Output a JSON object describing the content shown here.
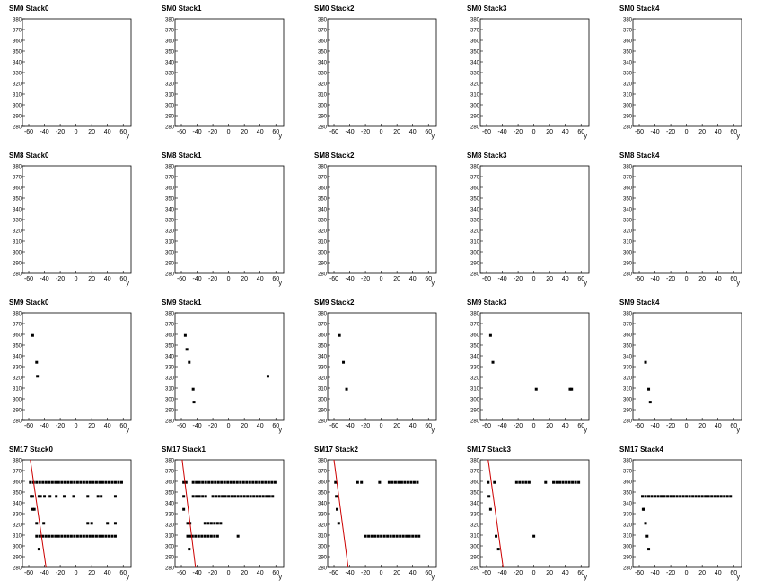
{
  "chart_data": [
    {
      "type": "scatter",
      "title": "SM0 Stack0",
      "xlabel": "y",
      "xlim": [
        -68,
        70
      ],
      "ylim": [
        280,
        380
      ],
      "xticks": [
        -60,
        -40,
        -20,
        0,
        20,
        40,
        60
      ],
      "yticks": [
        280,
        290,
        300,
        310,
        320,
        330,
        340,
        350,
        360,
        370,
        380
      ],
      "color": "#000000",
      "x": [],
      "values": []
    },
    {
      "type": "scatter",
      "title": "SM0 Stack1",
      "xlabel": "y",
      "xlim": [
        -68,
        70
      ],
      "ylim": [
        280,
        380
      ],
      "xticks": [
        -60,
        -40,
        -20,
        0,
        20,
        40,
        60
      ],
      "yticks": [
        280,
        290,
        300,
        310,
        320,
        330,
        340,
        350,
        360,
        370,
        380
      ],
      "color": "#000000",
      "x": [],
      "values": []
    },
    {
      "type": "scatter",
      "title": "SM0 Stack2",
      "xlabel": "y",
      "xlim": [
        -68,
        70
      ],
      "ylim": [
        280,
        380
      ],
      "xticks": [
        -60,
        -40,
        -20,
        0,
        20,
        40,
        60
      ],
      "yticks": [
        280,
        290,
        300,
        310,
        320,
        330,
        340,
        350,
        360,
        370,
        380
      ],
      "color": "#000000",
      "x": [],
      "values": []
    },
    {
      "type": "scatter",
      "title": "SM0 Stack3",
      "xlabel": "y",
      "xlim": [
        -68,
        70
      ],
      "ylim": [
        280,
        380
      ],
      "xticks": [
        -60,
        -40,
        -20,
        0,
        20,
        40,
        60
      ],
      "yticks": [
        280,
        290,
        300,
        310,
        320,
        330,
        340,
        350,
        360,
        370,
        380
      ],
      "color": "#000000",
      "x": [],
      "values": []
    },
    {
      "type": "scatter",
      "title": "SM0 Stack4",
      "xlabel": "y",
      "xlim": [
        -68,
        70
      ],
      "ylim": [
        280,
        380
      ],
      "xticks": [
        -60,
        -40,
        -20,
        0,
        20,
        40,
        60
      ],
      "yticks": [
        280,
        290,
        300,
        310,
        320,
        330,
        340,
        350,
        360,
        370,
        380
      ],
      "color": "#000000",
      "x": [],
      "values": []
    },
    {
      "type": "scatter",
      "title": "SM8 Stack0",
      "xlabel": "y",
      "xlim": [
        -68,
        70
      ],
      "ylim": [
        280,
        380
      ],
      "xticks": [
        -60,
        -40,
        -20,
        0,
        20,
        40,
        60
      ],
      "yticks": [
        280,
        290,
        300,
        310,
        320,
        330,
        340,
        350,
        360,
        370,
        380
      ],
      "color": "#000000",
      "x": [],
      "values": []
    },
    {
      "type": "scatter",
      "title": "SM8 Stack1",
      "xlabel": "y",
      "xlim": [
        -68,
        70
      ],
      "ylim": [
        280,
        380
      ],
      "xticks": [
        -60,
        -40,
        -20,
        0,
        20,
        40,
        60
      ],
      "yticks": [
        280,
        290,
        300,
        310,
        320,
        330,
        340,
        350,
        360,
        370,
        380
      ],
      "color": "#000000",
      "x": [],
      "values": []
    },
    {
      "type": "scatter",
      "title": "SM8 Stack2",
      "xlabel": "y",
      "xlim": [
        -68,
        70
      ],
      "ylim": [
        280,
        380
      ],
      "xticks": [
        -60,
        -40,
        -20,
        0,
        20,
        40,
        60
      ],
      "yticks": [
        280,
        290,
        300,
        310,
        320,
        330,
        340,
        350,
        360,
        370,
        380
      ],
      "color": "#000000",
      "x": [],
      "values": []
    },
    {
      "type": "scatter",
      "title": "SM8 Stack3",
      "xlabel": "y",
      "xlim": [
        -68,
        70
      ],
      "ylim": [
        280,
        380
      ],
      "xticks": [
        -60,
        -40,
        -20,
        0,
        20,
        40,
        60
      ],
      "yticks": [
        280,
        290,
        300,
        310,
        320,
        330,
        340,
        350,
        360,
        370,
        380
      ],
      "color": "#000000",
      "x": [],
      "values": []
    },
    {
      "type": "scatter",
      "title": "SM8 Stack4",
      "xlabel": "y",
      "xlim": [
        -68,
        70
      ],
      "ylim": [
        280,
        380
      ],
      "xticks": [
        -60,
        -40,
        -20,
        0,
        20,
        40,
        60
      ],
      "yticks": [
        280,
        290,
        300,
        310,
        320,
        330,
        340,
        350,
        360,
        370,
        380
      ],
      "color": "#000000",
      "x": [],
      "values": []
    },
    {
      "type": "scatter",
      "title": "SM9 Stack0",
      "xlabel": "y",
      "xlim": [
        -68,
        70
      ],
      "ylim": [
        280,
        380
      ],
      "xticks": [
        -60,
        -40,
        -20,
        0,
        20,
        40,
        60
      ],
      "yticks": [
        280,
        290,
        300,
        310,
        320,
        330,
        340,
        350,
        360,
        370,
        380
      ],
      "color": "#000000",
      "x": [
        -55,
        -50,
        -49
      ],
      "values": [
        359,
        334,
        321
      ]
    },
    {
      "type": "scatter",
      "title": "SM9 Stack1",
      "xlabel": "y",
      "xlim": [
        -68,
        70
      ],
      "ylim": [
        280,
        380
      ],
      "xticks": [
        -60,
        -40,
        -20,
        0,
        20,
        40,
        60
      ],
      "yticks": [
        280,
        290,
        300,
        310,
        320,
        330,
        340,
        350,
        360,
        370,
        380
      ],
      "color": "#000000",
      "x": [
        -55,
        -53,
        -50,
        -45,
        -44,
        50
      ],
      "values": [
        359,
        346,
        334,
        309,
        297,
        321
      ]
    },
    {
      "type": "scatter",
      "title": "SM9 Stack2",
      "xlabel": "y",
      "xlim": [
        -68,
        70
      ],
      "ylim": [
        280,
        380
      ],
      "xticks": [
        -60,
        -40,
        -20,
        0,
        20,
        40,
        60
      ],
      "yticks": [
        280,
        290,
        300,
        310,
        320,
        330,
        340,
        350,
        360,
        370,
        380
      ],
      "color": "#000000",
      "x": [
        -53,
        -48,
        -44
      ],
      "values": [
        359,
        334,
        309
      ]
    },
    {
      "type": "scatter",
      "title": "SM9 Stack3",
      "xlabel": "y",
      "xlim": [
        -68,
        70
      ],
      "ylim": [
        280,
        380
      ],
      "xticks": [
        -60,
        -40,
        -20,
        0,
        20,
        40,
        60
      ],
      "yticks": [
        280,
        290,
        300,
        310,
        320,
        330,
        340,
        350,
        360,
        370,
        380
      ],
      "color": "#000000",
      "x": [
        -55,
        -52,
        3,
        46,
        48
      ],
      "values": [
        359,
        334,
        309,
        309,
        309
      ]
    },
    {
      "type": "scatter",
      "title": "SM9 Stack4",
      "xlabel": "y",
      "xlim": [
        -68,
        70
      ],
      "ylim": [
        280,
        380
      ],
      "xticks": [
        -60,
        -40,
        -20,
        0,
        20,
        40,
        60
      ],
      "yticks": [
        280,
        290,
        300,
        310,
        320,
        330,
        340,
        350,
        360,
        370,
        380
      ],
      "color": "#000000",
      "x": [
        -52,
        -48,
        -46
      ],
      "values": [
        334,
        309,
        297
      ]
    },
    {
      "type": "scatter",
      "title": "SM17 Stack0",
      "xlabel": "y",
      "xlim": [
        -68,
        70
      ],
      "ylim": [
        280,
        380
      ],
      "xticks": [
        -60,
        -40,
        -20,
        0,
        20,
        40,
        60
      ],
      "yticks": [
        280,
        290,
        300,
        310,
        320,
        330,
        340,
        350,
        360,
        370,
        380
      ],
      "color": "#000000",
      "x": [
        -58,
        -54,
        -50,
        -46,
        -42,
        -38,
        -34,
        -30,
        -26,
        -22,
        -18,
        -14,
        -10,
        -6,
        -2,
        2,
        6,
        10,
        14,
        18,
        22,
        26,
        30,
        34,
        38,
        42,
        46,
        50,
        54,
        58,
        -57,
        -55,
        -47,
        -45,
        -40,
        -33,
        -25,
        -15,
        -3,
        15,
        28,
        32,
        50,
        -55,
        -53,
        -50,
        -41,
        15,
        20,
        40,
        50,
        -50,
        -46,
        -42,
        -38,
        -34,
        -30,
        -26,
        -22,
        -18,
        -14,
        -10,
        -6,
        -2,
        2,
        6,
        10,
        14,
        18,
        22,
        26,
        30,
        34,
        38,
        42,
        46,
        50,
        -47
      ],
      "values": [
        359,
        359,
        359,
        359,
        359,
        359,
        359,
        359,
        359,
        359,
        359,
        359,
        359,
        359,
        359,
        359,
        359,
        359,
        359,
        359,
        359,
        359,
        359,
        359,
        359,
        359,
        359,
        359,
        359,
        359,
        346,
        346,
        346,
        346,
        346,
        346,
        346,
        346,
        346,
        346,
        346,
        346,
        346,
        334,
        334,
        321,
        321,
        321,
        321,
        321,
        321,
        309,
        309,
        309,
        309,
        309,
        309,
        309,
        309,
        309,
        309,
        309,
        309,
        309,
        309,
        309,
        309,
        309,
        309,
        309,
        309,
        309,
        309,
        309,
        309,
        309,
        309,
        297
      ],
      "fit": {
        "x": [
          -58,
          -38
        ],
        "values": [
          380,
          280
        ],
        "color": "#cc0000"
      }
    },
    {
      "type": "scatter",
      "title": "SM17 Stack1",
      "xlabel": "y",
      "xlim": [
        -68,
        70
      ],
      "ylim": [
        280,
        380
      ],
      "xticks": [
        -60,
        -40,
        -20,
        0,
        20,
        40,
        60
      ],
      "yticks": [
        280,
        290,
        300,
        310,
        320,
        330,
        340,
        350,
        360,
        370,
        380
      ],
      "color": "#000000",
      "x": [
        -57,
        -54,
        -45,
        -41,
        -37,
        -33,
        -29,
        -25,
        -21,
        -17,
        -13,
        -9,
        -5,
        -1,
        3,
        7,
        11,
        15,
        19,
        23,
        27,
        31,
        35,
        39,
        43,
        47,
        51,
        55,
        59,
        -57,
        -45,
        -41,
        -37,
        -33,
        -29,
        -20,
        -16,
        -12,
        -8,
        -4,
        0,
        4,
        8,
        12,
        16,
        20,
        24,
        28,
        32,
        36,
        40,
        44,
        48,
        52,
        56,
        -57,
        -52,
        -49,
        -30,
        -26,
        -22,
        -18,
        -14,
        -10,
        -52,
        -49,
        -46,
        -42,
        -38,
        -34,
        -30,
        -26,
        -22,
        -18,
        -14,
        12,
        -50
      ],
      "values": [
        359,
        359,
        359,
        359,
        359,
        359,
        359,
        359,
        359,
        359,
        359,
        359,
        359,
        359,
        359,
        359,
        359,
        359,
        359,
        359,
        359,
        359,
        359,
        359,
        359,
        359,
        359,
        359,
        359,
        346,
        346,
        346,
        346,
        346,
        346,
        346,
        346,
        346,
        346,
        346,
        346,
        346,
        346,
        346,
        346,
        346,
        346,
        346,
        346,
        346,
        346,
        346,
        346,
        346,
        346,
        334,
        321,
        321,
        321,
        321,
        321,
        321,
        321,
        321,
        309,
        309,
        309,
        309,
        309,
        309,
        309,
        309,
        309,
        309,
        309,
        309,
        297
      ],
      "fit": {
        "x": [
          -59,
          -42
        ],
        "values": [
          380,
          280
        ],
        "color": "#cc0000"
      }
    },
    {
      "type": "scatter",
      "title": "SM17 Stack2",
      "xlabel": "y",
      "xlim": [
        -68,
        70
      ],
      "ylim": [
        280,
        380
      ],
      "xticks": [
        -60,
        -40,
        -20,
        0,
        20,
        40,
        60
      ],
      "yticks": [
        280,
        290,
        300,
        310,
        320,
        330,
        340,
        350,
        360,
        370,
        380
      ],
      "color": "#000000",
      "x": [
        -58,
        -30,
        -25,
        -2,
        10,
        14,
        18,
        22,
        26,
        30,
        34,
        38,
        42,
        46,
        -57,
        -56,
        -54,
        -20,
        -16,
        -12,
        -8,
        -4,
        0,
        4,
        8,
        12,
        16,
        20,
        24,
        28,
        32,
        36,
        40,
        44,
        48
      ],
      "values": [
        359,
        359,
        359,
        359,
        359,
        359,
        359,
        359,
        359,
        359,
        359,
        359,
        359,
        359,
        346,
        334,
        321,
        309,
        309,
        309,
        309,
        309,
        309,
        309,
        309,
        309,
        309,
        309,
        309,
        309,
        309,
        309,
        309,
        309,
        309
      ],
      "fit": {
        "x": [
          -60,
          -42
        ],
        "values": [
          380,
          280
        ],
        "color": "#cc0000"
      }
    },
    {
      "type": "scatter",
      "title": "SM17 Stack3",
      "xlabel": "y",
      "xlim": [
        -68,
        70
      ],
      "ylim": [
        280,
        380
      ],
      "xticks": [
        -60,
        -40,
        -20,
        0,
        20,
        40,
        60
      ],
      "yticks": [
        280,
        290,
        300,
        310,
        320,
        330,
        340,
        350,
        360,
        370,
        380
      ],
      "color": "#000000",
      "x": [
        -58,
        -50,
        -22,
        -18,
        -14,
        -10,
        -6,
        15,
        25,
        29,
        33,
        37,
        41,
        45,
        49,
        53,
        57,
        -57,
        -55,
        -48,
        0,
        -45
      ],
      "values": [
        359,
        359,
        359,
        359,
        359,
        359,
        359,
        359,
        359,
        359,
        359,
        359,
        359,
        359,
        359,
        359,
        359,
        346,
        334,
        309,
        309,
        297
      ],
      "fit": {
        "x": [
          -58,
          -39
        ],
        "values": [
          380,
          280
        ],
        "color": "#cc0000"
      }
    },
    {
      "type": "scatter",
      "title": "SM17 Stack4",
      "xlabel": "y",
      "xlim": [
        -68,
        70
      ],
      "ylim": [
        280,
        380
      ],
      "xticks": [
        -60,
        -40,
        -20,
        0,
        20,
        40,
        60
      ],
      "yticks": [
        280,
        290,
        300,
        310,
        320,
        330,
        340,
        350,
        360,
        370,
        380
      ],
      "color": "#000000",
      "x": [
        -56,
        -52,
        -48,
        -44,
        -40,
        -36,
        -32,
        -28,
        -24,
        -20,
        -16,
        -12,
        -8,
        -4,
        0,
        4,
        8,
        12,
        16,
        20,
        24,
        28,
        32,
        36,
        40,
        44,
        48,
        52,
        56,
        -55,
        -54,
        -52,
        -50,
        -48
      ],
      "values": [
        346,
        346,
        346,
        346,
        346,
        346,
        346,
        346,
        346,
        346,
        346,
        346,
        346,
        346,
        346,
        346,
        346,
        346,
        346,
        346,
        346,
        346,
        346,
        346,
        346,
        346,
        346,
        346,
        346,
        334,
        334,
        321,
        309,
        297
      ]
    }
  ]
}
